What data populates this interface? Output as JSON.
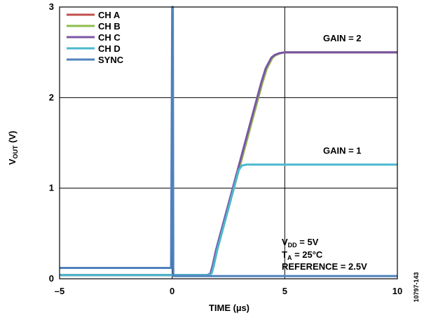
{
  "chart_data": {
    "type": "line",
    "title": "",
    "xlabel": "TIME (µs)",
    "ylabel_main": "V",
    "ylabel_sub": "OUT",
    "ylabel_unit": " (V)",
    "xlim": [
      -5,
      10
    ],
    "ylim": [
      0,
      3
    ],
    "x_ticks": [
      {
        "value": -5,
        "label": "–5"
      },
      {
        "value": 0,
        "label": "0"
      },
      {
        "value": 5,
        "label": "5"
      },
      {
        "value": 10,
        "label": "10"
      }
    ],
    "y_ticks": [
      {
        "value": 0,
        "label": "0"
      },
      {
        "value": 1,
        "label": "1"
      },
      {
        "value": 2,
        "label": "2"
      },
      {
        "value": 3,
        "label": "3"
      }
    ],
    "grid": true,
    "legend_position": "top-left",
    "series": [
      {
        "name": "CH A",
        "color": "#c0504d",
        "x": [
          -5,
          1.6,
          1.75,
          1.85,
          2.0,
          2.5,
          3.0,
          3.5,
          4.0,
          4.2,
          4.45,
          4.6,
          4.8,
          5.0,
          10
        ],
        "y": [
          0.04,
          0.04,
          0.06,
          0.15,
          0.32,
          0.78,
          1.24,
          1.7,
          2.16,
          2.32,
          2.44,
          2.47,
          2.49,
          2.5,
          2.5
        ]
      },
      {
        "name": "CH B",
        "color": "#8dbe4a",
        "x": [
          -5,
          1.6,
          1.75,
          1.85,
          2.0,
          2.5,
          3.0,
          3.5,
          4.0,
          4.2,
          4.45,
          4.6,
          4.8,
          5.0,
          10
        ],
        "y": [
          0.04,
          0.04,
          0.06,
          0.15,
          0.32,
          0.78,
          1.24,
          1.7,
          2.16,
          2.32,
          2.44,
          2.47,
          2.49,
          2.5,
          2.5
        ]
      },
      {
        "name": "CH C",
        "color": "#7b55a6",
        "x": [
          -5,
          1.55,
          1.7,
          1.8,
          1.95,
          2.45,
          2.95,
          3.45,
          3.95,
          4.15,
          4.4,
          4.55,
          4.75,
          5.0,
          10
        ],
        "y": [
          0.04,
          0.04,
          0.06,
          0.15,
          0.32,
          0.78,
          1.24,
          1.7,
          2.16,
          2.32,
          2.44,
          2.47,
          2.49,
          2.5,
          2.5
        ]
      },
      {
        "name": "CH D",
        "color": "#4bb8cf",
        "x": [
          -5,
          1.6,
          1.75,
          1.85,
          2.0,
          2.5,
          2.8,
          2.95,
          3.1,
          3.3,
          10
        ],
        "y": [
          0.04,
          0.04,
          0.06,
          0.15,
          0.32,
          0.78,
          1.06,
          1.2,
          1.25,
          1.26,
          1.26
        ]
      },
      {
        "name": "SYNC",
        "color": "#4f81bd",
        "x": [
          -5,
          -0.05,
          0,
          0.03,
          0.05,
          10
        ],
        "y": [
          0.12,
          0.12,
          3.0,
          3.0,
          0.03,
          0.03
        ]
      }
    ],
    "annotations": [
      {
        "text": "GAIN = 2",
        "x": 6.7,
        "y": 2.62
      },
      {
        "text": "GAIN = 1",
        "x": 6.7,
        "y": 1.38
      }
    ],
    "conditions": {
      "vdd_main": "V",
      "vdd_sub": "DD",
      "vdd_rest": " = 5V",
      "ta_main": "T",
      "ta_sub": "A",
      "ta_rest": " = 25°C",
      "reference": "REFERENCE = 2.5V"
    },
    "figure_id": "10797-143"
  }
}
